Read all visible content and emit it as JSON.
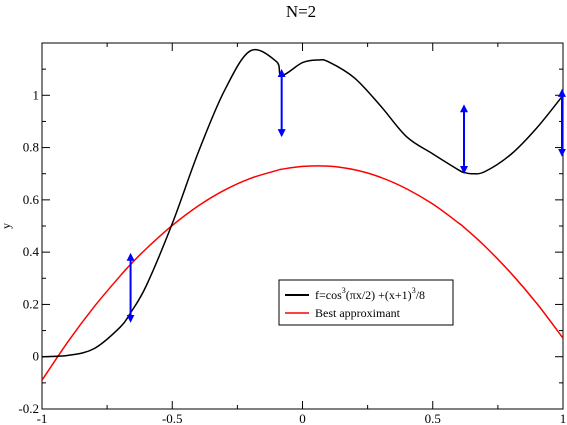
{
  "chart_data": {
    "type": "line",
    "title": "N=2",
    "xlabel": "",
    "ylabel": "y",
    "xlim": [
      -1,
      1
    ],
    "ylim": [
      -0.2,
      1.2
    ],
    "grid": false,
    "legend_position": "bottom-right",
    "x_ticks": [
      "-1",
      "-0.5",
      "0",
      "0.5",
      "1"
    ],
    "y_ticks": [
      "-0.2",
      "0",
      "0.2",
      "0.4",
      "0.6",
      "0.8",
      "1"
    ],
    "x_tick_values": [
      -1,
      -0.5,
      0,
      0.5,
      1
    ],
    "y_tick_values": [
      -0.2,
      0,
      0.2,
      0.4,
      0.6,
      0.8,
      1
    ],
    "series": [
      {
        "name": "f=cos³(πx/2) +(x+1)³/8",
        "legend": {
          "main": "f=cos",
          "p1": "3",
          "mid": "(πx/2) +(x+1)",
          "p2": "3",
          "end": "/8"
        },
        "color": "#000000",
        "x": [
          -1.0,
          -0.9,
          -0.8,
          -0.7,
          -0.66,
          -0.6,
          -0.5,
          -0.4,
          -0.3,
          -0.2,
          -0.1,
          -0.08,
          0.0,
          0.06,
          0.1,
          0.2,
          0.3,
          0.4,
          0.5,
          0.6,
          0.62,
          0.65,
          0.7,
          0.8,
          0.9,
          1.0
        ],
        "y": [
          0.0,
          0.005,
          0.031,
          0.113,
          0.168,
          0.271,
          0.509,
          0.782,
          1.017,
          1.17,
          1.129,
          1.076,
          1.125,
          1.135,
          1.128,
          1.066,
          0.959,
          0.841,
          0.776,
          0.714,
          0.705,
          0.7,
          0.708,
          0.774,
          0.876,
          1.0
        ]
      },
      {
        "name": "Best approximant",
        "color": "#ff0000",
        "x": [
          -1.0,
          -0.9,
          -0.8,
          -0.7,
          -0.66,
          -0.6,
          -0.5,
          -0.4,
          -0.3,
          -0.2,
          -0.1,
          -0.08,
          0.0,
          0.1,
          0.2,
          0.3,
          0.4,
          0.5,
          0.6,
          0.62,
          0.7,
          0.8,
          0.9,
          1.0
        ],
        "y": [
          -0.09,
          0.058,
          0.191,
          0.309,
          0.353,
          0.413,
          0.502,
          0.577,
          0.637,
          0.682,
          0.712,
          0.717,
          0.728,
          0.729,
          0.715,
          0.686,
          0.642,
          0.584,
          0.511,
          0.495,
          0.423,
          0.32,
          0.203,
          0.071
        ]
      }
    ],
    "error_arrows": [
      {
        "x": -0.66,
        "y_from": 0.373,
        "y_to": 0.136
      },
      {
        "x": -0.08,
        "y_from": 1.076,
        "y_to": 0.846
      },
      {
        "x": 0.62,
        "y_from": 0.941,
        "y_to": 0.705
      },
      {
        "x": 1.0,
        "y_from": 1.0,
        "y_to": 0.771
      }
    ],
    "arrow_color": "#0000ff"
  }
}
